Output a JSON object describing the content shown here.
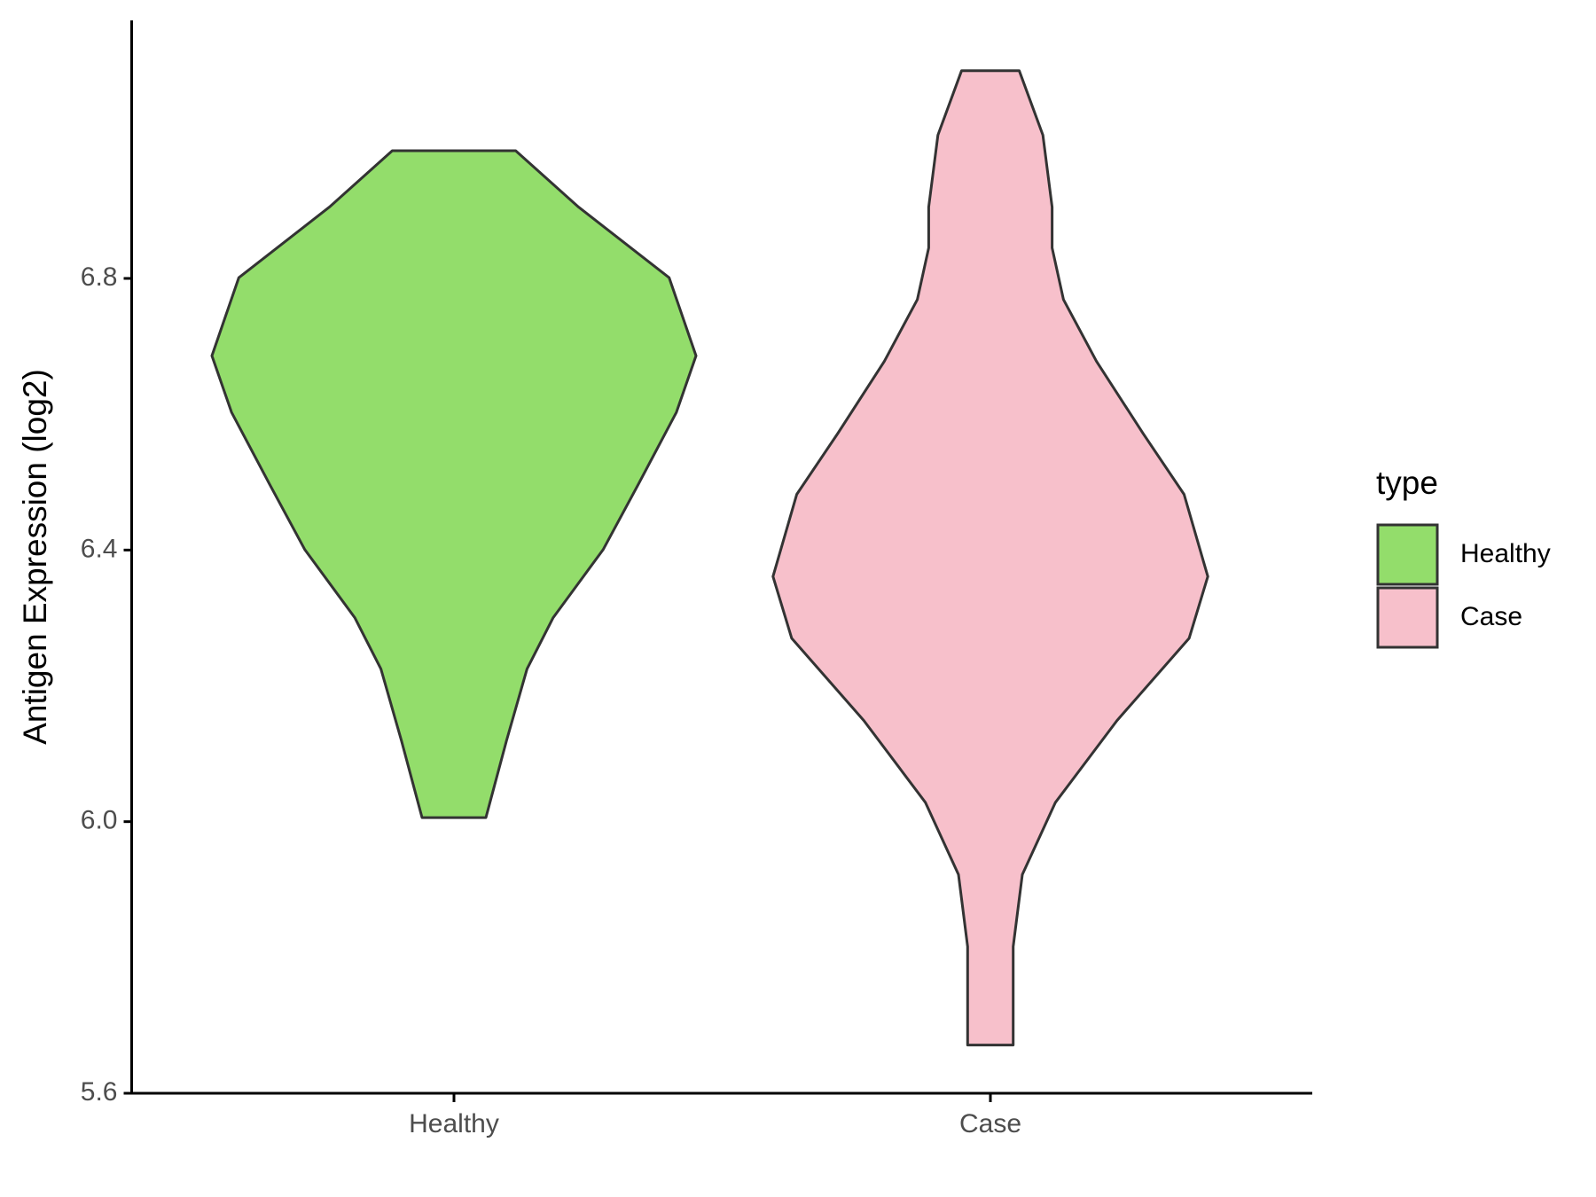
{
  "chart_data": {
    "type": "violin",
    "y_label": "Antigen Expression (log2)",
    "categories": [
      "Healthy",
      "Case"
    ],
    "legend_title": "type",
    "legend_position": "right",
    "ylim": [
      5.6,
      7.18
    ],
    "yticks": [
      {
        "value": 5.6,
        "label": "5.6"
      },
      {
        "value": 6.0,
        "label": "6.0"
      },
      {
        "value": 6.4,
        "label": "6.4"
      },
      {
        "value": 6.8,
        "label": "6.8"
      }
    ],
    "series": [
      {
        "name": "Healthy",
        "color": "#93dd6b",
        "y": [
          6.988,
          6.905,
          6.801,
          6.686,
          6.603,
          6.497,
          6.401,
          6.3,
          6.225,
          6.119,
          6.006
        ],
        "width": [
          0.255,
          0.515,
          0.889,
          1.0,
          0.919,
          0.762,
          0.617,
          0.409,
          0.302,
          0.217,
          0.132
        ]
      },
      {
        "name": "Case",
        "color": "#f7c0cb",
        "y": [
          7.106,
          7.011,
          6.905,
          6.845,
          6.769,
          6.678,
          6.572,
          6.482,
          6.361,
          6.27,
          6.149,
          6.028,
          5.922,
          5.816,
          5.726,
          5.671
        ],
        "width": [
          0.119,
          0.217,
          0.255,
          0.255,
          0.302,
          0.438,
          0.63,
          0.8,
          0.898,
          0.821,
          0.523,
          0.268,
          0.132,
          0.094,
          0.094,
          0.094
        ]
      }
    ]
  }
}
